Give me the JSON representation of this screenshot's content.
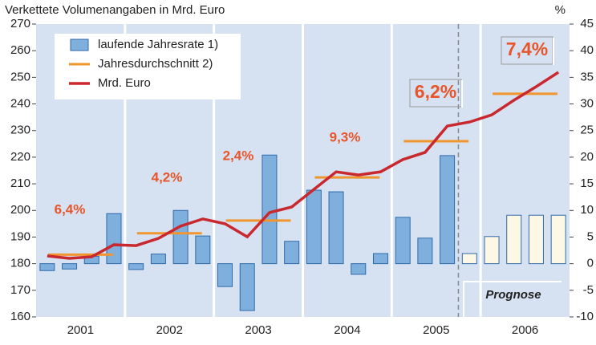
{
  "chart_data": {
    "type": "bar",
    "title": "Verkettete Volumenangaben in Mrd. Euro",
    "y2_unit": "%",
    "categories": [
      null,
      null,
      null,
      null,
      null,
      null,
      null,
      null,
      null,
      null,
      null,
      null,
      null,
      null,
      null,
      null,
      null,
      null,
      null,
      null,
      null,
      null,
      null,
      null
    ],
    "year_labels": [
      "2001",
      "2002",
      "2003",
      "2004",
      "2005",
      "2006"
    ],
    "series": [
      {
        "name": "laufende Jahresrate 1)",
        "type": "bar",
        "axis": "y2",
        "color": "#7fb0dd",
        "colors": [
          "#7fb0dd",
          "#7fb0dd",
          "#7fb0dd",
          "#7fb0dd",
          "#7fb0dd",
          "#7fb0dd",
          "#7fb0dd",
          "#7fb0dd",
          "#7fb0dd",
          "#7fb0dd",
          "#7fb0dd",
          "#7fb0dd",
          "#7fb0dd",
          "#7fb0dd",
          "#7fb0dd",
          "#7fb0dd",
          "#7fb0dd",
          "#7fb0dd",
          "#7fb0dd",
          "#fdf8e6",
          "#fdf8e6",
          "#fdf8e6",
          "#fdf8e6",
          "#fdf8e6"
        ],
        "values": [
          -1.3,
          -1.0,
          1.4,
          9.4,
          -1.1,
          1.8,
          10.0,
          5.2,
          -4.3,
          -8.8,
          20.4,
          4.2,
          13.8,
          13.5,
          -2.0,
          1.9,
          8.7,
          4.8,
          20.3,
          1.9,
          5.1,
          9.1,
          9.1,
          9.1
        ]
      },
      {
        "name": "Mrd. Euro",
        "type": "line",
        "color": "#c8282e",
        "values": [
          182.9,
          182.0,
          182.6,
          187.1,
          186.8,
          189.5,
          194.1,
          196.8,
          195.0,
          190.1,
          199.2,
          201.3,
          207.9,
          214.5,
          213.3,
          214.5,
          219.1,
          221.8,
          231.7,
          233.2,
          235.9,
          241.4,
          246.5,
          251.9
        ]
      }
    ],
    "annual_series": {
      "name": "Jahresdurchschnitt 2)",
      "axis": "y2",
      "color": "#f0962e",
      "values": [
        1.7,
        5.7,
        8.1,
        16.2,
        23.0,
        31.9
      ]
    },
    "annotations": [
      "6,4%",
      "4,2%",
      "2,4%",
      "9,3%",
      "6,2%",
      "7,4%"
    ],
    "forecast_label": "Prognose",
    "ylim": [
      160,
      270
    ],
    "yticks": [
      160,
      170,
      180,
      190,
      200,
      210,
      220,
      230,
      240,
      250,
      260,
      270
    ],
    "y2lim": [
      -10,
      45
    ],
    "y2ticks": [
      -10,
      -5,
      0,
      5,
      10,
      15,
      20,
      25,
      30,
      35,
      40,
      45
    ],
    "background": "#d6e2f2"
  }
}
